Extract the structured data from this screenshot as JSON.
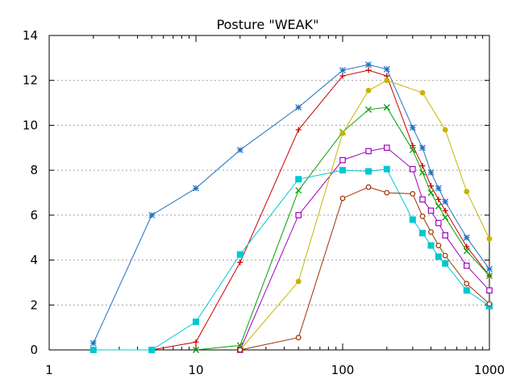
{
  "chart_data": {
    "type": "line",
    "title": "Posture \"WEAK\"",
    "xscale": "log",
    "xlim": [
      1,
      1000
    ],
    "ylim": [
      0,
      14
    ],
    "xticks": [
      1,
      10,
      100,
      1000
    ],
    "xtick_labels": [
      "1",
      "10",
      "100",
      "1000"
    ],
    "yticks": [
      0,
      2,
      4,
      6,
      8,
      10,
      12,
      14
    ],
    "ytick_labels": [
      "0",
      "2",
      "4",
      "6",
      "8",
      "10",
      "12",
      "14"
    ],
    "grid": true,
    "legend": "none",
    "series": [
      {
        "name": "red-plus",
        "color": "#cc0000",
        "marker": "plus",
        "x": [
          5,
          10,
          20,
          50,
          100,
          150,
          200,
          300,
          350,
          400,
          450,
          500,
          700,
          1000
        ],
        "y": [
          0,
          0.35,
          3.9,
          9.8,
          12.2,
          12.45,
          12.2,
          9.1,
          8.2,
          7.3,
          6.7,
          6.2,
          4.6,
          3.3
        ]
      },
      {
        "name": "green-x",
        "color": "#00a000",
        "marker": "x",
        "x": [
          10,
          20,
          50,
          100,
          150,
          200,
          300,
          350,
          400,
          450,
          500,
          700,
          1000
        ],
        "y": [
          0,
          0.2,
          7.1,
          9.7,
          10.7,
          10.8,
          8.9,
          7.9,
          7.0,
          6.4,
          5.9,
          4.4,
          3.3
        ]
      },
      {
        "name": "blue-star",
        "color": "#2270c0",
        "marker": "star",
        "x": [
          2,
          5,
          10,
          20,
          50,
          100,
          150,
          200,
          300,
          350,
          400,
          450,
          500,
          700,
          1000
        ],
        "y": [
          0.3,
          6.0,
          7.2,
          8.9,
          10.8,
          12.45,
          12.7,
          12.5,
          9.9,
          9.0,
          7.9,
          7.2,
          6.6,
          5.0,
          3.6
        ]
      },
      {
        "name": "purple-open-square",
        "color": "#a000c0",
        "marker": "open-square",
        "x": [
          20,
          50,
          100,
          150,
          200,
          300,
          350,
          400,
          450,
          500,
          700,
          1000
        ],
        "y": [
          0,
          6.0,
          8.45,
          8.85,
          9.0,
          8.05,
          6.7,
          6.2,
          5.65,
          5.1,
          3.75,
          2.65
        ]
      },
      {
        "name": "cyan-filled-square",
        "color": "#00c8d0",
        "marker": "filled-square",
        "x": [
          2,
          5,
          10,
          20,
          50,
          100,
          150,
          200,
          300,
          350,
          400,
          450,
          500,
          700,
          1000
        ],
        "y": [
          0,
          0,
          1.25,
          4.25,
          7.6,
          8.0,
          7.95,
          8.05,
          5.8,
          5.2,
          4.65,
          4.15,
          3.85,
          2.65,
          1.95
        ]
      },
      {
        "name": "olive-filled-circle",
        "color": "#c8b400",
        "marker": "filled-circle",
        "x": [
          20,
          50,
          100,
          150,
          200,
          350,
          500,
          700,
          1000
        ],
        "y": [
          0,
          3.05,
          9.65,
          11.55,
          12.0,
          11.45,
          9.8,
          7.05,
          4.95
        ]
      },
      {
        "name": "brown-open-circle",
        "color": "#a03000",
        "marker": "open-circle",
        "x": [
          20,
          50,
          100,
          150,
          200,
          300,
          350,
          400,
          450,
          500,
          700,
          1000
        ],
        "y": [
          0,
          0.55,
          6.75,
          7.25,
          7.0,
          6.95,
          5.95,
          5.25,
          4.65,
          4.2,
          2.95,
          2.05
        ]
      }
    ]
  }
}
